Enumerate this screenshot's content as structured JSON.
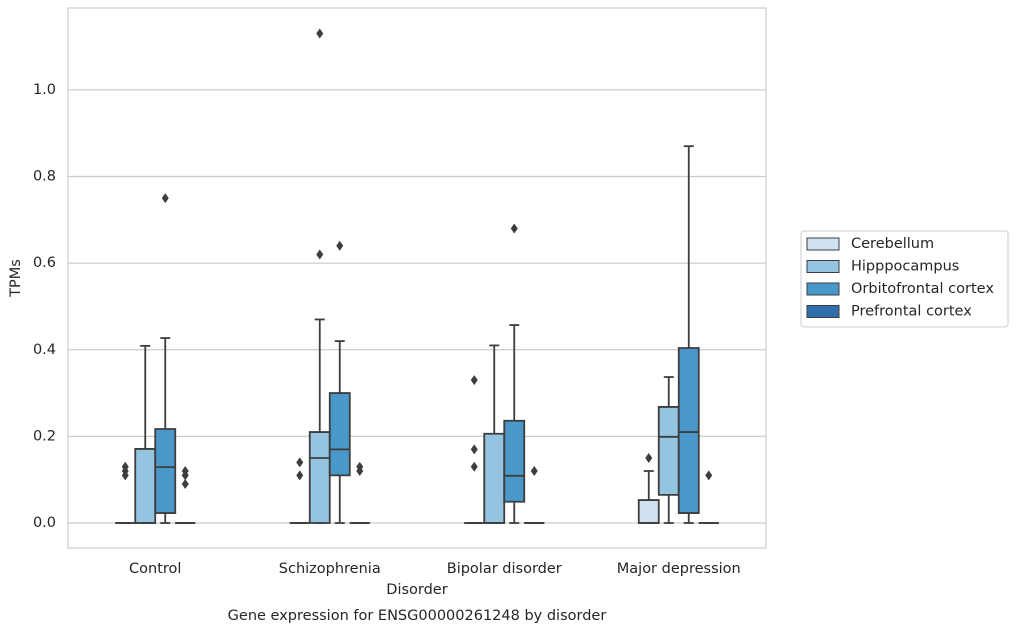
{
  "chart_data": {
    "type": "box",
    "title": "Gene expression for ENSG00000261248 by disorder",
    "xlabel": "Disorder",
    "ylabel": "TPMs",
    "categories": [
      "Control",
      "Schizophrenia",
      "Bipolar disorder",
      "Major depression"
    ],
    "ylim": [
      -0.0577,
      1.189
    ],
    "yticks": [
      {
        "value": 0,
        "label": "0.0"
      },
      0.2,
      0.4,
      0.6,
      0.8,
      {
        "value": 1,
        "label": "1.0"
      }
    ],
    "grid": true,
    "legend": "right",
    "series": [
      {
        "name": "Cerebellum",
        "color": "#d0e1f2",
        "values": [
          {
            "min": 0,
            "q1": 0,
            "median": 0,
            "q3": 0,
            "max": 0,
            "outliers": [
              0.13,
              0.12,
              0.11
            ]
          },
          {
            "min": 0,
            "q1": 0,
            "median": 0,
            "q3": 0,
            "max": 0,
            "outliers": [
              0.14,
              0.11
            ]
          },
          {
            "min": 0,
            "q1": 0,
            "median": 0,
            "q3": 0,
            "max": 0,
            "outliers": [
              0.33,
              0.17,
              0.13
            ]
          },
          {
            "min": 0,
            "q1": 0,
            "median": 0,
            "q3": 0.053,
            "max": 0.12,
            "outliers": [
              0.15
            ]
          }
        ]
      },
      {
        "name": "Hipppocampus",
        "color": "#94c4df",
        "values": [
          {
            "min": 0,
            "q1": 0,
            "median": 0,
            "q3": 0.171,
            "max": 0.409,
            "outliers": []
          },
          {
            "min": 0,
            "q1": 0,
            "median": 0.15,
            "q3": 0.21,
            "max": 0.47,
            "outliers": [
              0.62,
              1.13
            ]
          },
          {
            "min": 0,
            "q1": 0,
            "median": 0,
            "q3": 0.206,
            "max": 0.41,
            "outliers": []
          },
          {
            "min": 0,
            "q1": 0.065,
            "median": 0.199,
            "q3": 0.268,
            "max": 0.337,
            "outliers": []
          }
        ]
      },
      {
        "name": "Orbitofrontal cortex",
        "color": "#4a98c9",
        "values": [
          {
            "min": 0,
            "q1": 0.023,
            "median": 0.129,
            "q3": 0.217,
            "max": 0.427,
            "outliers": [
              0.75
            ]
          },
          {
            "min": 0,
            "q1": 0.11,
            "median": 0.17,
            "q3": 0.3,
            "max": 0.42,
            "outliers": [
              0.64
            ]
          },
          {
            "min": 0,
            "q1": 0.049,
            "median": 0.109,
            "q3": 0.236,
            "max": 0.457,
            "outliers": [
              0.68
            ]
          },
          {
            "min": 0,
            "q1": 0.023,
            "median": 0.21,
            "q3": 0.404,
            "max": 0.87,
            "outliers": []
          }
        ]
      },
      {
        "name": "Prefrontal cortex",
        "color": "#2e6fab",
        "values": [
          {
            "min": 0,
            "q1": 0,
            "median": 0,
            "q3": 0,
            "max": 0,
            "outliers": [
              0.12,
              0.11,
              0.09
            ]
          },
          {
            "min": 0,
            "q1": 0,
            "median": 0,
            "q3": 0,
            "max": 0,
            "outliers": [
              0.13,
              0.12
            ]
          },
          {
            "min": 0,
            "q1": 0,
            "median": 0,
            "q3": 0,
            "max": 0,
            "outliers": [
              0.12
            ]
          },
          {
            "min": 0,
            "q1": 0,
            "median": 0,
            "q3": 0,
            "max": 0,
            "outliers": [
              0.11
            ]
          }
        ]
      }
    ]
  }
}
